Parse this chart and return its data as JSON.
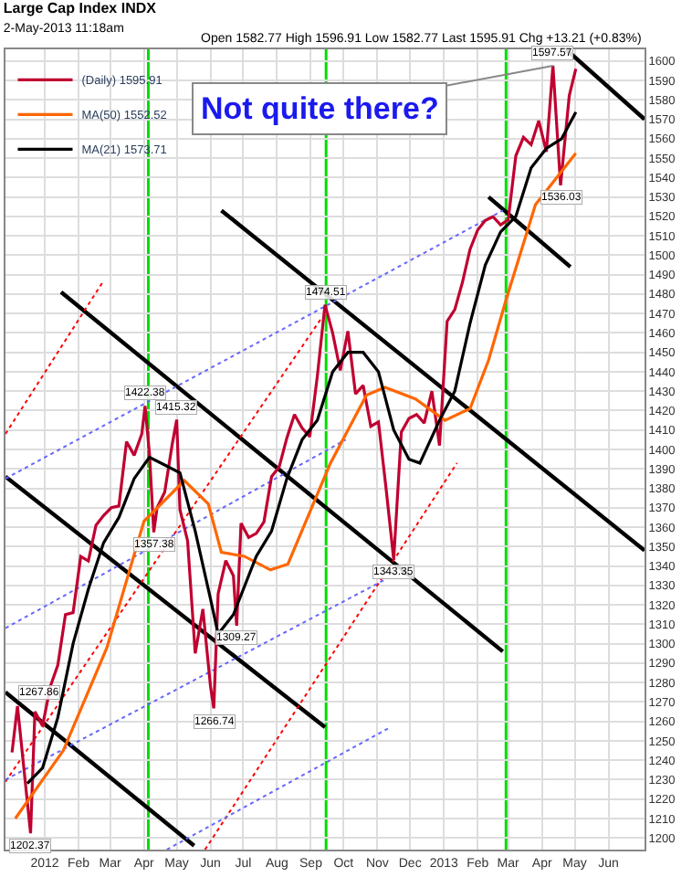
{
  "chart_data": {
    "type": "line",
    "title": "Large Cap Index INDX",
    "subtitle": "2-May-2013 11:18am",
    "xlim": [
      "2011-11-26",
      "2013-07-04"
    ],
    "ylim": [
      1194,
      1606
    ],
    "xticks": [
      {
        "value": "2012-01-01",
        "label": "2012"
      },
      {
        "value": "2012-02-01",
        "label": "Feb"
      },
      {
        "value": "2012-03-01",
        "label": "Mar"
      },
      {
        "value": "2012-04-01",
        "label": "Apr"
      },
      {
        "value": "2012-05-01",
        "label": "May"
      },
      {
        "value": "2012-06-01",
        "label": "Jun"
      },
      {
        "value": "2012-07-01",
        "label": "Jul"
      },
      {
        "value": "2012-08-01",
        "label": "Aug"
      },
      {
        "value": "2012-09-01",
        "label": "Sep"
      },
      {
        "value": "2012-10-01",
        "label": "Oct"
      },
      {
        "value": "2012-11-01",
        "label": "Nov"
      },
      {
        "value": "2012-12-01",
        "label": "Dec"
      },
      {
        "value": "2013-01-01",
        "label": "2013"
      },
      {
        "value": "2013-02-01",
        "label": "Feb"
      },
      {
        "value": "2013-03-01",
        "label": "Mar"
      },
      {
        "value": "2013-04-01",
        "label": "Apr"
      },
      {
        "value": "2013-05-01",
        "label": "May"
      },
      {
        "value": "2013-06-01",
        "label": "Jun"
      }
    ],
    "yticks": [
      1200,
      1210,
      1220,
      1230,
      1240,
      1250,
      1260,
      1270,
      1280,
      1290,
      1300,
      1310,
      1320,
      1330,
      1340,
      1350,
      1360,
      1370,
      1380,
      1390,
      1400,
      1410,
      1420,
      1430,
      1440,
      1450,
      1460,
      1470,
      1480,
      1490,
      1500,
      1510,
      1520,
      1530,
      1540,
      1550,
      1560,
      1570,
      1580,
      1590,
      1600
    ],
    "grid": true,
    "legend": "top left",
    "series": [
      {
        "name": "(Daily) 1595.91",
        "color": "#c00030",
        "x": [
          "2011-12-02",
          "2011-12-07",
          "2011-12-19",
          "2011-12-23",
          "2011-12-30",
          "2012-01-06",
          "2012-01-13",
          "2012-01-20",
          "2012-01-27",
          "2012-02-03",
          "2012-02-10",
          "2012-02-17",
          "2012-02-24",
          "2012-03-02",
          "2012-03-09",
          "2012-03-16",
          "2012-03-23",
          "2012-03-30",
          "2012-04-02",
          "2012-04-06",
          "2012-04-10",
          "2012-04-13",
          "2012-04-20",
          "2012-04-27",
          "2012-05-01",
          "2012-05-04",
          "2012-05-11",
          "2012-05-18",
          "2012-05-25",
          "2012-06-01",
          "2012-06-04",
          "2012-06-08",
          "2012-06-15",
          "2012-06-22",
          "2012-06-25",
          "2012-06-29",
          "2012-07-06",
          "2012-07-13",
          "2012-07-20",
          "2012-07-27",
          "2012-08-03",
          "2012-08-10",
          "2012-08-17",
          "2012-08-24",
          "2012-08-31",
          "2012-09-07",
          "2012-09-14",
          "2012-09-21",
          "2012-09-28",
          "2012-10-05",
          "2012-10-12",
          "2012-10-19",
          "2012-10-26",
          "2012-11-02",
          "2012-11-09",
          "2012-11-16",
          "2012-11-23",
          "2012-11-30",
          "2012-12-07",
          "2012-12-14",
          "2012-12-21",
          "2012-12-28",
          "2013-01-04",
          "2013-01-11",
          "2013-01-18",
          "2013-01-25",
          "2013-02-01",
          "2013-02-08",
          "2013-02-15",
          "2013-02-22",
          "2013-03-01",
          "2013-03-08",
          "2013-03-15",
          "2013-03-22",
          "2013-03-29",
          "2013-04-05",
          "2013-04-11",
          "2013-04-12",
          "2013-04-18",
          "2013-04-26",
          "2013-05-02"
        ],
        "values": [
          1244,
          1267.86,
          1202.37,
          1265,
          1257.6,
          1277.8,
          1289,
          1315,
          1316,
          1344.9,
          1342.6,
          1361,
          1366,
          1370,
          1370.9,
          1404,
          1397,
          1408,
          1422.38,
          1398,
          1357.38,
          1370,
          1378,
          1403,
          1415.32,
          1369,
          1353,
          1295,
          1317.8,
          1278,
          1266.74,
          1325.7,
          1342.8,
          1335,
          1309.27,
          1362,
          1354.7,
          1356.8,
          1362.7,
          1386,
          1391,
          1405.9,
          1418,
          1411,
          1406.6,
          1437.9,
          1474.51,
          1460,
          1440.7,
          1460.9,
          1428.6,
          1433,
          1411.9,
          1414.2,
          1379.9,
          1343.35,
          1409,
          1416,
          1418,
          1413.6,
          1430,
          1402,
          1466,
          1472,
          1486,
          1503,
          1513,
          1517.9,
          1519.8,
          1515.6,
          1518.2,
          1551.2,
          1560.7,
          1556.9,
          1569.2,
          1553.3,
          1597.57,
          1588.9,
          1536.03,
          1582.2,
          1595.91
        ]
      },
      {
        "name": "MA(50) 1552.52",
        "color": "#ff6600",
        "x": [
          "2011-12-05",
          "2012-01-18",
          "2012-02-27",
          "2012-04-01",
          "2012-05-08",
          "2012-05-30",
          "2012-06-11",
          "2012-07-02",
          "2012-07-26",
          "2012-08-11",
          "2012-09-19",
          "2012-10-22",
          "2012-11-08",
          "2012-12-06",
          "2013-01-02",
          "2013-01-25",
          "2013-02-11",
          "2013-02-27",
          "2013-03-26",
          "2013-05-02"
        ],
        "values": [
          1210,
          1245,
          1298,
          1363,
          1384,
          1372,
          1347,
          1345,
          1338,
          1341,
          1393,
          1428,
          1432,
          1426,
          1415,
          1421,
          1446,
          1477,
          1526,
          1552.52
        ]
      },
      {
        "name": "MA(21) 1573.71",
        "color": "#000000",
        "x": [
          "2011-12-16",
          "2011-12-30",
          "2012-01-13",
          "2012-01-27",
          "2012-02-10",
          "2012-02-24",
          "2012-03-09",
          "2012-03-23",
          "2012-04-06",
          "2012-04-20",
          "2012-05-04",
          "2012-05-18",
          "2012-06-01",
          "2012-06-08",
          "2012-06-22",
          "2012-07-13",
          "2012-07-27",
          "2012-08-10",
          "2012-08-24",
          "2012-09-07",
          "2012-09-21",
          "2012-10-05",
          "2012-10-19",
          "2012-11-02",
          "2012-11-16",
          "2012-11-30",
          "2012-12-10",
          "2012-12-28",
          "2013-01-11",
          "2013-01-25",
          "2013-02-08",
          "2013-02-22",
          "2013-03-08",
          "2013-03-22",
          "2013-04-05",
          "2013-04-19",
          "2013-05-02"
        ],
        "values": [
          1228,
          1236,
          1262,
          1300,
          1328,
          1352,
          1365,
          1385,
          1396,
          1392,
          1388,
          1358,
          1323,
          1305,
          1315,
          1345,
          1358,
          1385,
          1405,
          1415,
          1440,
          1450,
          1450,
          1440,
          1410,
          1395,
          1393,
          1415,
          1430,
          1465,
          1495,
          1512,
          1520,
          1545,
          1555,
          1560,
          1573.71
        ]
      },
      {
        "color": "#000000",
        "line_style": "solid",
        "x": [
          "2011-11-26",
          "2012-05-17"
        ],
        "values": [
          1275,
          1196
        ]
      },
      {
        "color": "#000000",
        "line_style": "solid",
        "x": [
          "2011-11-26",
          "2012-09-14"
        ],
        "values": [
          1386,
          1257
        ]
      },
      {
        "color": "#000000",
        "line_style": "solid",
        "x": [
          "2012-01-16",
          "2013-02-24"
        ],
        "values": [
          1481,
          1296
        ]
      },
      {
        "color": "#000000",
        "line_style": "solid",
        "x": [
          "2012-06-11",
          "2013-07-04"
        ],
        "values": [
          1523,
          1348
        ]
      },
      {
        "color": "#000000",
        "line_style": "solid",
        "x": [
          "2013-02-11",
          "2013-04-27"
        ],
        "values": [
          1530,
          1494
        ]
      },
      {
        "color": "#000000",
        "line_style": "solid",
        "x": [
          "2013-04-23",
          "2013-07-04"
        ],
        "values": [
          1606,
          1570
        ]
      },
      {
        "color": "#ff0000",
        "line_style": "dotted",
        "x": [
          "2011-11-26",
          "2012-02-23"
        ],
        "values": [
          1408,
          1486
        ]
      },
      {
        "color": "#ff0000",
        "line_style": "dotted",
        "x": [
          "2011-11-26",
          "2012-09-10"
        ],
        "values": [
          1229,
          1467
        ]
      },
      {
        "color": "#ff0000",
        "line_style": "dotted",
        "x": [
          "2012-05-27",
          "2013-01-13"
        ],
        "values": [
          1194,
          1393
        ]
      },
      {
        "color": "#6666ff",
        "line_style": "dotted",
        "x": [
          "2011-11-26",
          "2013-02-24"
        ],
        "values": [
          1385,
          1523
        ]
      },
      {
        "color": "#6666ff",
        "line_style": "dotted",
        "x": [
          "2011-11-26",
          "2012-10-03"
        ],
        "values": [
          1308,
          1405
        ]
      },
      {
        "color": "#6666ff",
        "line_style": "dotted",
        "x": [
          "2011-11-26",
          "2012-11-08"
        ],
        "values": [
          1230,
          1333
        ]
      },
      {
        "color": "#6666ff",
        "line_style": "dotted",
        "x": [
          "2012-04-22",
          "2012-11-13"
        ],
        "values": [
          1194,
          1257
        ]
      }
    ],
    "ref_lines": [
      {
        "axis": "x",
        "value": "2012-04-05",
        "color": "#00dd00"
      },
      {
        "axis": "x",
        "value": "2012-09-15",
        "color": "#00dd00"
      },
      {
        "axis": "x",
        "value": "2013-02-27",
        "color": "#00dd00"
      }
    ],
    "annotations": [
      "Open 1582.77 High 1596.91 Low 1582.77 Last 1595.91 Chg +13.21 (+0.83%)",
      {
        "text": "Not quite there?",
        "x": "2013-04-11",
        "y": 1597.57
      },
      {
        "text": "1202.37",
        "x": "2011-12-19",
        "y": 1202.37
      },
      {
        "text": "1267.86",
        "x": "2011-12-07",
        "y": 1267.86
      },
      {
        "text": "1422.38",
        "x": "2012-04-02",
        "y": 1422.38
      },
      {
        "text": "1415.32",
        "x": "2012-05-01",
        "y": 1415.32
      },
      {
        "text": "1357.38",
        "x": "2012-04-10",
        "y": 1357.38
      },
      {
        "text": "1266.74",
        "x": "2012-06-04",
        "y": 1266.74
      },
      {
        "text": "1309.27",
        "x": "2012-06-25",
        "y": 1309.27
      },
      {
        "text": "1474.51",
        "x": "2012-09-14",
        "y": 1474.51
      },
      {
        "text": "1343.35",
        "x": "2012-11-16",
        "y": 1343.35
      },
      {
        "text": "1597.57",
        "x": "2013-04-11",
        "y": 1597.57
      },
      {
        "text": "1536.03",
        "x": "2013-04-18",
        "y": 1536.03
      }
    ]
  }
}
